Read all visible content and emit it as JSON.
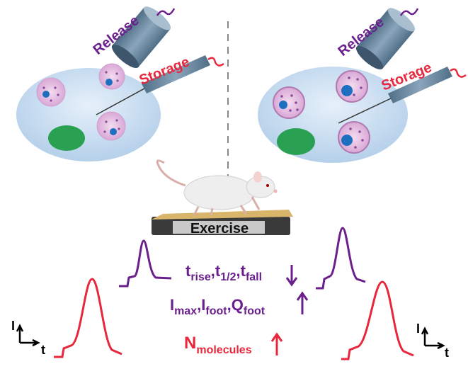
{
  "labels": {
    "release": "Release",
    "storage": "Storage",
    "exercise": "Exercise"
  },
  "params": {
    "kinetics": {
      "t": "t",
      "rise": "rise",
      "half": "1/2",
      "fall": "fall",
      "comma": ","
    },
    "amplitude": {
      "I": "I",
      "max": "max",
      "foot": "foot",
      "Q": "Q",
      "comma": ","
    },
    "molecules": {
      "N": "N",
      "sub": "molecules"
    }
  },
  "axes": {
    "y": "I",
    "x": "t"
  },
  "colors": {
    "purple": "#6b1f8c",
    "red": "#e8263c",
    "cell": "#bcd6ee",
    "nucleus": "#2aa053",
    "vesicle": "#e9c6e6",
    "pipette": "#6f8fa8"
  }
}
